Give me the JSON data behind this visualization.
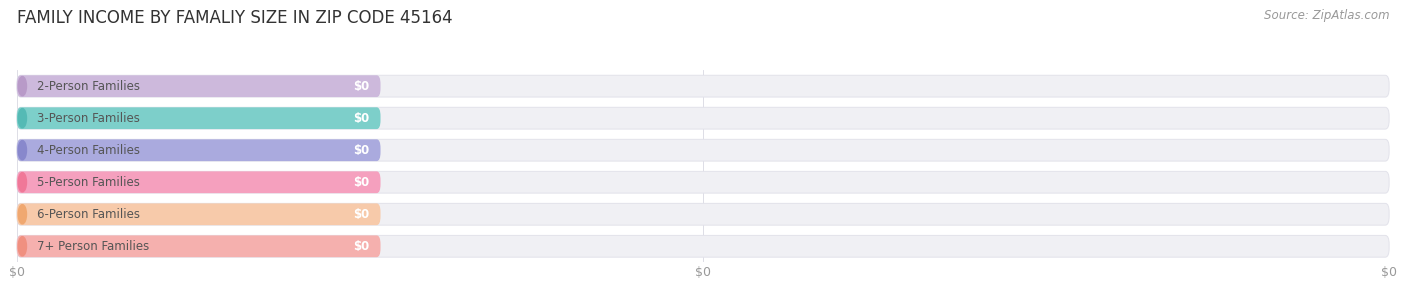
{
  "title": "FAMILY INCOME BY FAMALIY SIZE IN ZIP CODE 45164",
  "source": "Source: ZipAtlas.com",
  "categories": [
    "2-Person Families",
    "3-Person Families",
    "4-Person Families",
    "5-Person Families",
    "6-Person Families",
    "7+ Person Families"
  ],
  "values": [
    0,
    0,
    0,
    0,
    0,
    0
  ],
  "bar_colors": [
    "#cdb9dc",
    "#7dcfca",
    "#aaaade",
    "#f5a0be",
    "#f7caaa",
    "#f5b0ae"
  ],
  "dot_colors": [
    "#b89ac8",
    "#55bab5",
    "#8888cc",
    "#f07898",
    "#f0a870",
    "#f09080"
  ],
  "track_color": "#f0f0f4",
  "track_edge_color": "#e2e2ea",
  "background_color": "#ffffff",
  "title_fontsize": 12,
  "source_fontsize": 8.5,
  "label_fontsize": 8.5,
  "value_fontsize": 8.5,
  "xtick_labels": [
    "$0",
    "$0",
    "$0"
  ],
  "xtick_positions": [
    0,
    50,
    100
  ]
}
